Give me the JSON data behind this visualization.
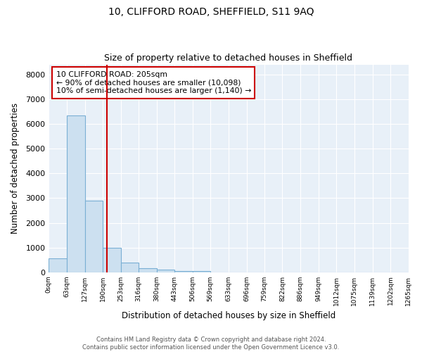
{
  "title1": "10, CLIFFORD ROAD, SHEFFIELD, S11 9AQ",
  "title2": "Size of property relative to detached houses in Sheffield",
  "xlabel": "Distribution of detached houses by size in Sheffield",
  "ylabel": "Number of detached properties",
  "bin_edges": [
    0,
    63,
    127,
    190,
    253,
    316,
    380,
    443,
    506,
    569,
    633,
    696,
    759,
    822,
    886,
    949,
    1012,
    1075,
    1139,
    1202,
    1265
  ],
  "bar_heights": [
    550,
    6350,
    2900,
    1000,
    380,
    160,
    110,
    60,
    50,
    0,
    0,
    0,
    0,
    0,
    0,
    0,
    0,
    0,
    0,
    0
  ],
  "bar_color": "#cce0f0",
  "bar_edge_color": "#7aafd4",
  "red_line_x": 205,
  "ylim": [
    0,
    8400
  ],
  "yticks": [
    0,
    1000,
    2000,
    3000,
    4000,
    5000,
    6000,
    7000,
    8000
  ],
  "annotation_line1": "10 CLIFFORD ROAD: 205sqm",
  "annotation_line2": "← 90% of detached houses are smaller (10,098)",
  "annotation_line3": "10% of semi-detached houses are larger (1,140) →",
  "annotation_box_color": "#ffffff",
  "annotation_border_color": "#cc0000",
  "footnote1": "Contains HM Land Registry data © Crown copyright and database right 2024.",
  "footnote2": "Contains public sector information licensed under the Open Government Licence v3.0.",
  "plot_bg_color": "#e8f0f8",
  "grid_color": "#ffffff",
  "title1_fontsize": 10,
  "title2_fontsize": 9
}
